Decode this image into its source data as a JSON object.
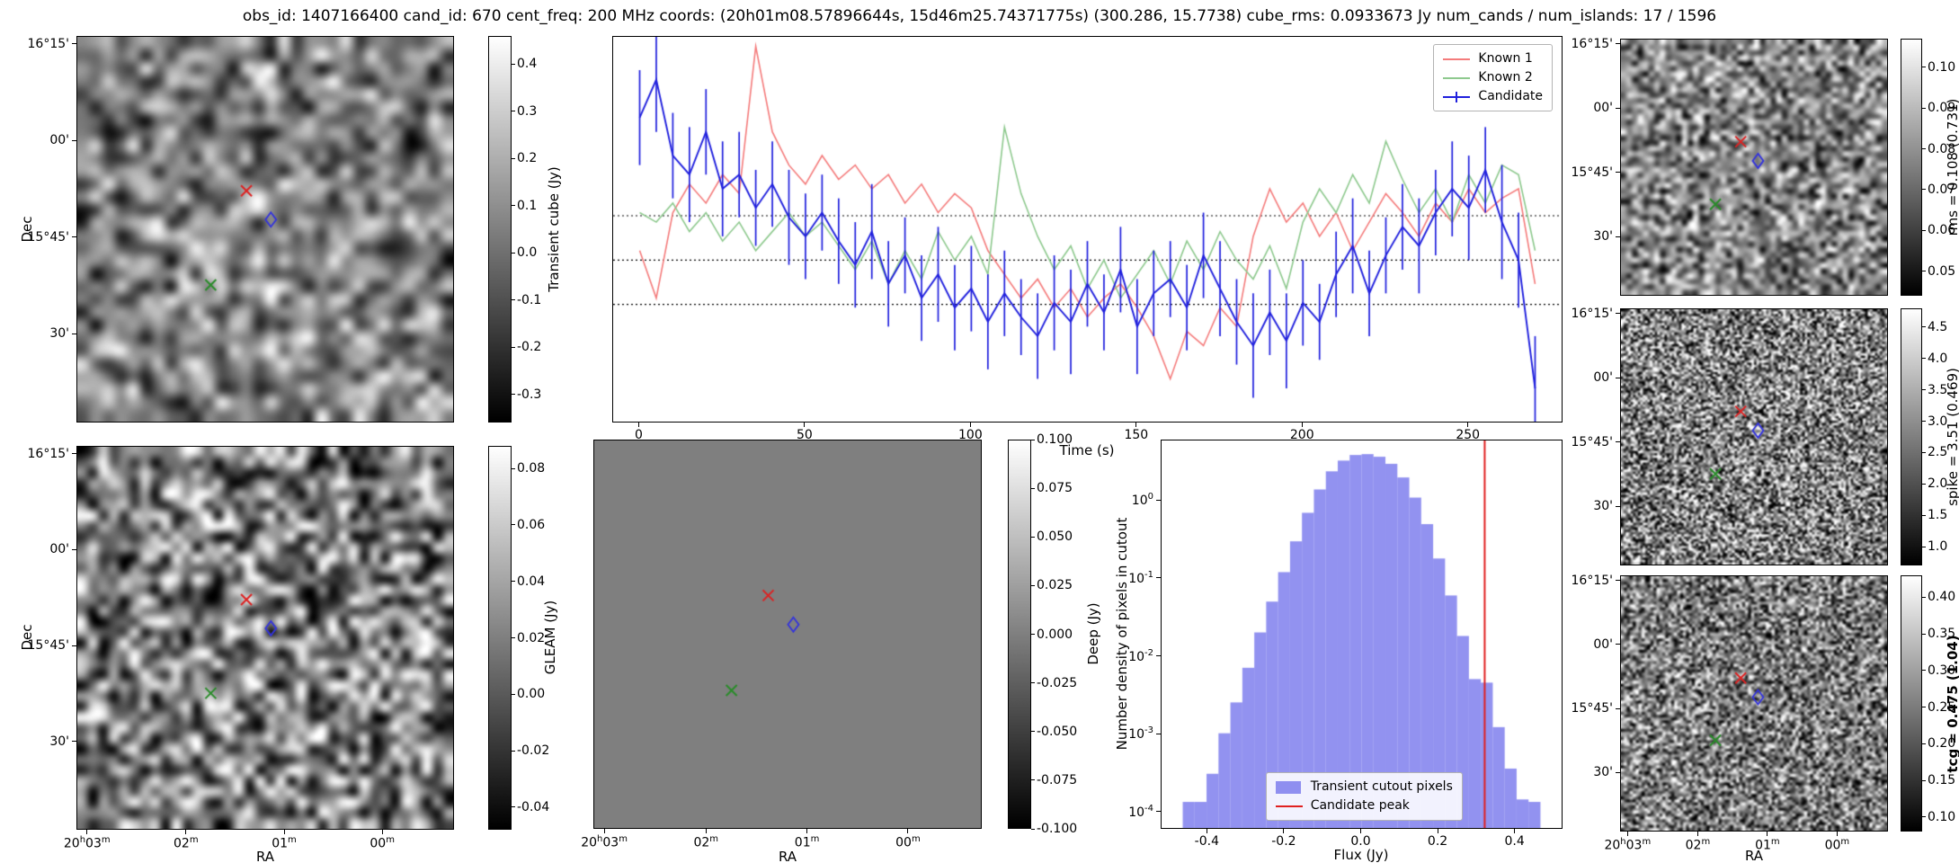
{
  "title": "obs_id: 1407166400 cand_id: 670 cent_freq: 200 MHz coords: (20h01m08.57896644s, 15d46m25.74371775s) (300.286, 15.7738) cube_rms: 0.0933673 Jy num_cands / num_islands: 17 / 1596",
  "axes": {
    "dec_label": "Dec",
    "ra_label": "RA",
    "dec_ticks": [
      "16°15'",
      "00'",
      "15°45'",
      "30'"
    ],
    "ra_ticks": [
      "20^h03^m",
      "02^m",
      "01^m",
      "00^m"
    ]
  },
  "markers": {
    "red_x": {
      "fx": 0.45,
      "fy": 0.4,
      "color": "#dd2222"
    },
    "blue_diamond": {
      "fx": 0.515,
      "fy": 0.475,
      "color": "#3333dd"
    },
    "green_x": {
      "fx": 0.355,
      "fy": 0.645,
      "color": "#2a8c2a"
    }
  },
  "colorbars": {
    "transient": {
      "label": "Transient cube (Jy)",
      "vmin": -0.36,
      "vmax": 0.46,
      "decimals": 1,
      "ticks": [
        0.4,
        0.3,
        0.2,
        0.1,
        0.0,
        -0.1,
        -0.2,
        -0.3
      ]
    },
    "gleam": {
      "label": "GLEAM (Jy)",
      "vmin": -0.048,
      "vmax": 0.088,
      "decimals": 2,
      "ticks": [
        0.08,
        0.06,
        0.04,
        0.02,
        0.0,
        -0.02,
        -0.04
      ]
    },
    "deep": {
      "label": "Deep (Jy)",
      "vmin": -0.1,
      "vmax": 0.1,
      "decimals": 3,
      "ticks": [
        0.1,
        0.075,
        0.05,
        0.025,
        0.0,
        -0.025,
        -0.05,
        -0.075,
        -0.1
      ]
    },
    "rms": {
      "label": "rms = 0.108 (0.731)",
      "vmin": 0.044,
      "vmax": 0.107,
      "decimals": 2,
      "ticks": [
        0.1,
        0.09,
        0.08,
        0.07,
        0.06,
        0.05
      ]
    },
    "spike": {
      "label": "spike = 3.51 (0.469)",
      "vmin": 0.7,
      "vmax": 4.8,
      "decimals": 1,
      "ticks": [
        4.5,
        4.0,
        3.5,
        3.0,
        2.5,
        2.0,
        1.5,
        1.0
      ]
    },
    "tcg": {
      "label": "tcg = 0.475 (1.04)",
      "vmin": 0.08,
      "vmax": 0.43,
      "decimals": 2,
      "ticks": [
        0.4,
        0.35,
        0.3,
        0.25,
        0.2,
        0.15,
        0.1
      ]
    }
  },
  "chart_data": [
    {
      "type": "line",
      "title": "",
      "xlabel": "Time (s)",
      "ylabel": "",
      "xlim": [
        -8,
        278
      ],
      "ylim": [
        -0.34,
        0.47
      ],
      "x_ticks": [
        0,
        50,
        100,
        150,
        200,
        250
      ],
      "hlines": [
        0.0934,
        0.0,
        -0.0934
      ],
      "legend_position": "upper right",
      "x": [
        0,
        5,
        10,
        15,
        20,
        25,
        30,
        35,
        40,
        45,
        50,
        55,
        60,
        65,
        70,
        75,
        80,
        85,
        90,
        95,
        100,
        105,
        110,
        115,
        120,
        125,
        130,
        135,
        140,
        145,
        150,
        155,
        160,
        165,
        170,
        175,
        180,
        185,
        190,
        195,
        200,
        205,
        210,
        215,
        220,
        225,
        230,
        235,
        240,
        245,
        250,
        255,
        260,
        265,
        270
      ],
      "series": [
        {
          "name": "Known 1",
          "color": "#f47c7c",
          "values": [
            0.02,
            -0.08,
            0.1,
            0.16,
            0.12,
            0.18,
            0.14,
            0.45,
            0.27,
            0.2,
            0.16,
            0.22,
            0.17,
            0.2,
            0.15,
            0.18,
            0.12,
            0.16,
            0.1,
            0.14,
            0.11,
            0.02,
            -0.03,
            -0.08,
            -0.04,
            -0.1,
            -0.06,
            -0.12,
            -0.08,
            -0.05,
            -0.1,
            -0.16,
            -0.25,
            -0.15,
            -0.18,
            -0.1,
            -0.14,
            0.05,
            0.15,
            0.08,
            0.12,
            0.05,
            0.1,
            0.02,
            0.08,
            0.14,
            0.1,
            0.05,
            0.12,
            0.08,
            0.15,
            0.1,
            0.13,
            0.15,
            -0.05
          ]
        },
        {
          "name": "Known 2",
          "color": "#8ec98e",
          "values": [
            0.1,
            0.08,
            0.12,
            0.06,
            0.1,
            0.04,
            0.08,
            0.02,
            0.06,
            0.1,
            0.05,
            0.08,
            0.03,
            -0.02,
            0.04,
            -0.05,
            0.02,
            -0.04,
            0.06,
            0.0,
            0.05,
            -0.03,
            0.28,
            0.14,
            0.05,
            -0.02,
            0.03,
            -0.06,
            0.0,
            -0.08,
            -0.03,
            0.02,
            -0.05,
            0.04,
            -0.02,
            0.06,
            0.0,
            -0.04,
            0.03,
            -0.06,
            0.08,
            0.15,
            0.1,
            0.18,
            0.12,
            0.25,
            0.17,
            0.1,
            0.15,
            0.08,
            0.18,
            0.12,
            0.2,
            0.18,
            0.02
          ]
        },
        {
          "name": "Candidate",
          "color": "#2020dd",
          "values": [
            0.3,
            0.38,
            0.22,
            0.18,
            0.27,
            0.15,
            0.18,
            0.11,
            0.16,
            0.09,
            0.05,
            0.1,
            0.04,
            -0.01,
            0.06,
            -0.05,
            0.01,
            -0.08,
            -0.03,
            -0.1,
            -0.06,
            -0.13,
            -0.07,
            -0.12,
            -0.16,
            -0.09,
            -0.13,
            -0.05,
            -0.11,
            -0.02,
            -0.14,
            -0.07,
            -0.04,
            -0.1,
            0.01,
            -0.06,
            -0.13,
            -0.18,
            -0.11,
            -0.17,
            -0.09,
            -0.13,
            -0.03,
            0.03,
            -0.07,
            0.01,
            0.07,
            0.03,
            0.1,
            0.15,
            0.11,
            0.19,
            0.08,
            0.0,
            -0.27
          ],
          "yerr": [
            0.1,
            0.11,
            0.09,
            0.1,
            0.09,
            0.1,
            0.09,
            0.08,
            0.09,
            0.1,
            0.09,
            0.08,
            0.09,
            0.09,
            0.1,
            0.09,
            0.08,
            0.09,
            0.1,
            0.09,
            0.09,
            0.1,
            0.09,
            0.08,
            0.09,
            0.1,
            0.11,
            0.09,
            0.08,
            0.09,
            0.1,
            0.09,
            0.08,
            0.09,
            0.09,
            0.1,
            0.09,
            0.11,
            0.09,
            0.1,
            0.09,
            0.08,
            0.09,
            0.1,
            0.09,
            0.08,
            0.09,
            0.1,
            0.09,
            0.1,
            0.11,
            0.09,
            0.12,
            0.1,
            0.11
          ]
        }
      ]
    },
    {
      "type": "bar",
      "title": "",
      "xlabel": "Flux (Jy)",
      "ylabel": "Number density of pixels in cutout",
      "xlim": [
        -0.52,
        0.52
      ],
      "yscale": "log",
      "ylim": [
        6e-05,
        6
      ],
      "x_ticks": [
        -0.4,
        -0.2,
        0.0,
        0.2,
        0.4
      ],
      "y_tick_exponents": [
        0,
        -1,
        -2,
        -3,
        -4
      ],
      "bin_start": -0.465,
      "bin_width": 0.031,
      "bar_color": "rgba(110,110,235,0.75)",
      "series_label": "Transient cutout pixels",
      "values": [
        0.00013,
        0.00013,
        0.0003,
        0.001,
        0.0025,
        0.007,
        0.02,
        0.05,
        0.12,
        0.3,
        0.7,
        1.4,
        2.4,
        3.3,
        3.9,
        4.0,
        3.7,
        3.0,
        2.0,
        1.1,
        0.5,
        0.18,
        0.06,
        0.018,
        0.005,
        0.0045,
        0.0012,
        0.00035,
        0.00014,
        0.00013
      ],
      "vline": {
        "x": 0.32,
        "color": "#e02020",
        "label": "Candidate peak"
      }
    }
  ]
}
